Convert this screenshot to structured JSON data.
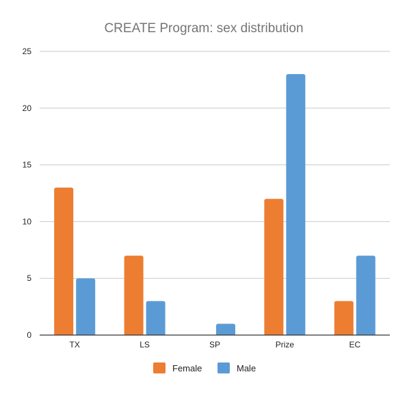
{
  "chart_data": {
    "type": "bar",
    "title": "CREATE Program: sex distribution",
    "xlabel": "",
    "ylabel": "",
    "categories": [
      "TX",
      "LS",
      "SP",
      "Prize",
      "EC"
    ],
    "series": [
      {
        "name": "Female",
        "color": "#ed7d31",
        "values": [
          13,
          7,
          0,
          12,
          3
        ]
      },
      {
        "name": "Male",
        "color": "#5b9bd5",
        "values": [
          5,
          3,
          1,
          23,
          7
        ]
      }
    ],
    "ylim": [
      0,
      25
    ],
    "yticks": [
      "0",
      "5",
      "10",
      "15",
      "20",
      "25"
    ],
    "grid": true,
    "legend_position": "bottom"
  }
}
